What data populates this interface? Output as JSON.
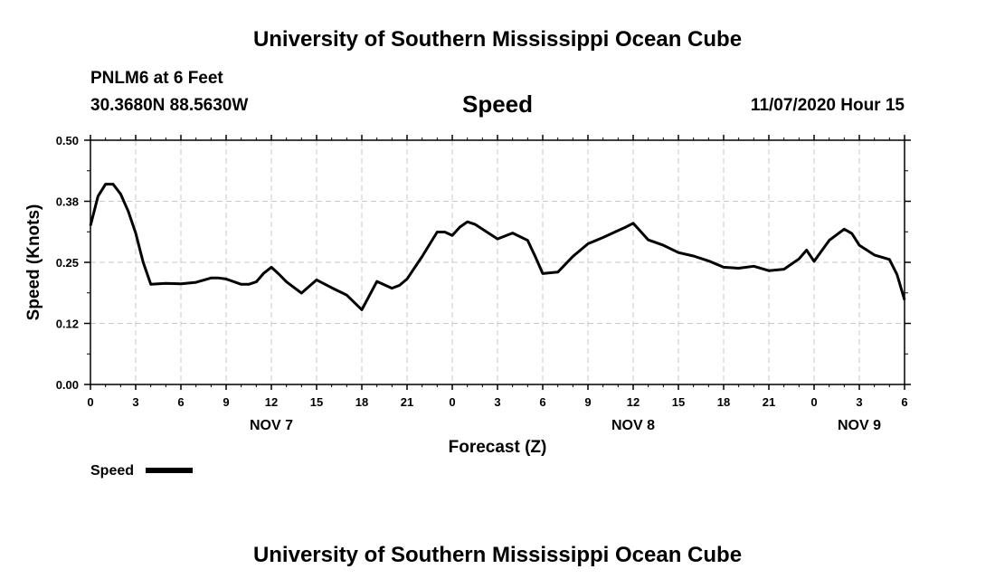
{
  "header": {
    "top_title": "University of Southern Mississippi Ocean Cube",
    "bottom_title": "University of Southern Mississippi Ocean Cube",
    "station": "PNLM6 at 6 Feet",
    "coords": "30.3680N 88.5630W",
    "datetime": "11/07/2020 Hour 15"
  },
  "chart_data": {
    "type": "line",
    "title": "Speed",
    "xlabel": "Forecast (Z)",
    "ylabel": "Speed (Knots)",
    "xlim": [
      0,
      54
    ],
    "ylim": [
      0,
      0.5
    ],
    "grid": true,
    "y_ticks": [
      "0.00",
      "0.12",
      "0.25",
      "0.38",
      "0.50"
    ],
    "x_tick_labels": [
      "0",
      "3",
      "6",
      "9",
      "12",
      "15",
      "18",
      "21",
      "0",
      "3",
      "6",
      "9",
      "12",
      "15",
      "18",
      "21",
      "0",
      "3",
      "6"
    ],
    "date_labels": [
      {
        "label": "NOV 7",
        "x": 12
      },
      {
        "label": "NOV 8",
        "x": 36
      },
      {
        "label": "NOV 9",
        "x": 51
      }
    ],
    "legend": {
      "position": "bottom-left",
      "label": "Speed"
    },
    "series": [
      {
        "name": "Speed",
        "color": "#000000",
        "x": [
          0,
          0.5,
          1,
          1.5,
          2,
          2.5,
          3,
          3.5,
          4,
          5,
          6,
          7,
          8,
          8.5,
          9,
          10,
          10.5,
          11,
          11.5,
          12,
          12.5,
          13,
          14,
          15,
          16,
          17,
          18,
          19,
          20,
          20.5,
          21,
          22,
          23,
          23.5,
          24,
          24.5,
          25,
          25.5,
          26,
          27,
          28,
          29,
          29.5,
          30,
          31,
          32,
          33,
          34,
          35,
          35.5,
          36,
          37,
          38,
          39,
          40,
          41,
          42,
          43,
          44,
          45,
          46,
          47,
          47.5,
          48,
          49,
          50,
          50.5,
          51,
          52,
          53,
          53.5,
          54
        ],
        "values": [
          0.325,
          0.385,
          0.41,
          0.41,
          0.39,
          0.355,
          0.31,
          0.25,
          0.205,
          0.207,
          0.206,
          0.209,
          0.218,
          0.218,
          0.216,
          0.205,
          0.205,
          0.21,
          0.228,
          0.24,
          0.226,
          0.21,
          0.187,
          0.214,
          0.198,
          0.183,
          0.153,
          0.211,
          0.197,
          0.203,
          0.216,
          0.262,
          0.312,
          0.312,
          0.305,
          0.322,
          0.333,
          0.328,
          0.318,
          0.298,
          0.31,
          0.295,
          0.262,
          0.227,
          0.23,
          0.262,
          0.288,
          0.301,
          0.315,
          0.322,
          0.33,
          0.296,
          0.285,
          0.27,
          0.263,
          0.253,
          0.24,
          0.238,
          0.242,
          0.233,
          0.236,
          0.257,
          0.275,
          0.252,
          0.295,
          0.318,
          0.309,
          0.285,
          0.265,
          0.256,
          0.225,
          0.173
        ]
      }
    ]
  }
}
